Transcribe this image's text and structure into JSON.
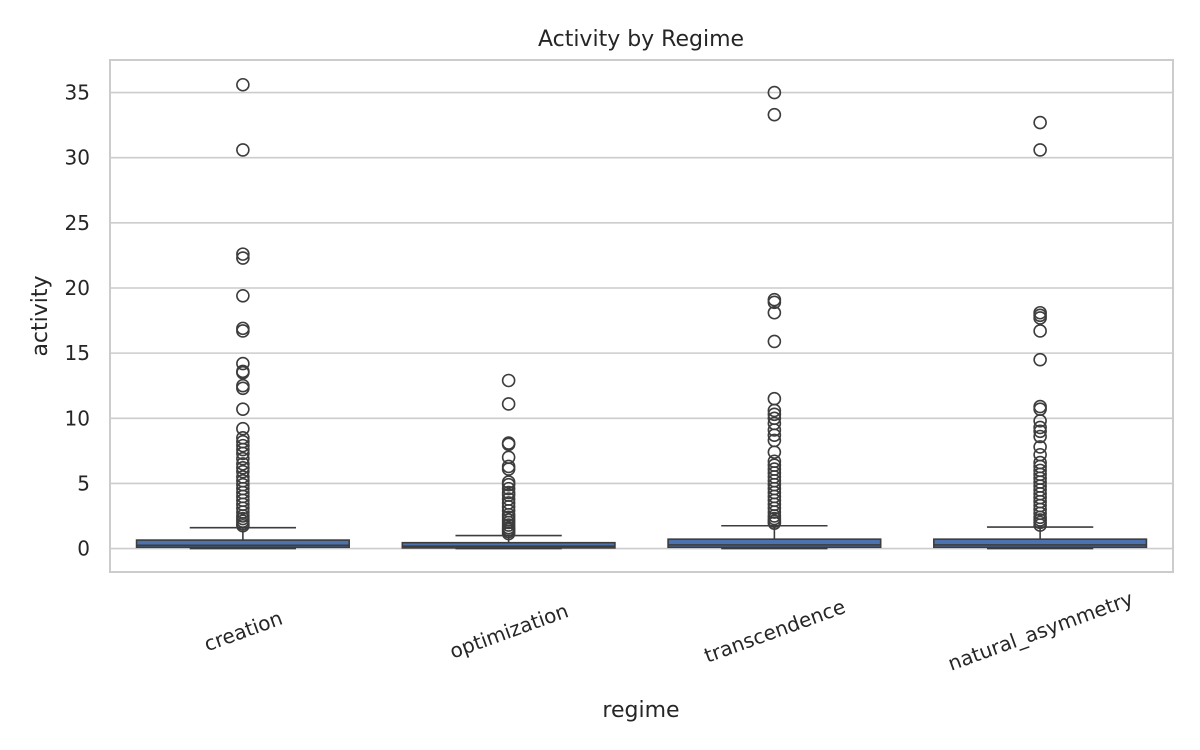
{
  "chart_data": {
    "type": "box",
    "title": "Activity by Regime",
    "xlabel": "regime",
    "ylabel": "activity",
    "ylim": [
      -1.8,
      37.5
    ],
    "yticks": [
      0,
      5,
      10,
      15,
      20,
      25,
      30,
      35
    ],
    "grid": "horizontal",
    "box_color": "#4c72b0",
    "line_color": "#3d3d3d",
    "categories": [
      "creation",
      "optimization",
      "transcendence",
      "natural_asymmetry"
    ],
    "boxes": [
      {
        "category": "creation",
        "whisker_low": 0.0,
        "q1": 0.1,
        "median": 0.25,
        "q3": 0.65,
        "whisker_high": 1.6,
        "outliers": [
          35.6,
          30.6,
          22.6,
          22.3,
          19.4,
          16.9,
          16.7,
          14.2,
          13.6,
          13.5,
          12.5,
          12.3,
          10.7,
          9.2,
          8.5,
          8.2,
          7.9,
          7.6,
          7.3,
          6.9,
          6.5,
          6.2,
          5.9,
          5.5,
          5.2,
          4.9,
          4.6,
          4.3,
          4.0,
          3.7,
          3.4,
          3.1,
          2.8,
          2.5,
          2.3,
          2.1,
          1.9,
          1.75
        ]
      },
      {
        "category": "optimization",
        "whisker_low": 0.0,
        "q1": 0.05,
        "median": 0.18,
        "q3": 0.45,
        "whisker_high": 1.0,
        "outliers": [
          12.9,
          11.1,
          8.1,
          8.0,
          7.0,
          6.3,
          6.1,
          5.1,
          4.9,
          4.6,
          4.3,
          4.1,
          3.8,
          3.5,
          3.2,
          2.9,
          2.6,
          2.4,
          2.2,
          2.0,
          1.8,
          1.6,
          1.45,
          1.3,
          1.15
        ]
      },
      {
        "category": "transcendence",
        "whisker_low": 0.0,
        "q1": 0.1,
        "median": 0.28,
        "q3": 0.72,
        "whisker_high": 1.75,
        "outliers": [
          35.0,
          33.3,
          19.1,
          18.9,
          18.1,
          15.9,
          11.5,
          10.6,
          10.3,
          10.0,
          9.6,
          9.1,
          8.7,
          8.3,
          7.4,
          6.7,
          6.4,
          6.1,
          5.8,
          5.5,
          5.2,
          4.9,
          4.6,
          4.3,
          4.0,
          3.7,
          3.4,
          3.1,
          2.8,
          2.5,
          2.3,
          2.1,
          1.95
        ]
      },
      {
        "category": "natural_asymmetry",
        "whisker_low": 0.0,
        "q1": 0.1,
        "median": 0.28,
        "q3": 0.72,
        "whisker_high": 1.65,
        "outliers": [
          32.7,
          30.6,
          18.1,
          17.9,
          17.7,
          16.7,
          14.5,
          10.9,
          10.7,
          9.8,
          9.3,
          9.0,
          8.6,
          7.8,
          7.2,
          6.6,
          6.3,
          6.0,
          5.7,
          5.4,
          5.1,
          4.8,
          4.5,
          4.2,
          3.9,
          3.6,
          3.3,
          3.0,
          2.7,
          2.4,
          2.2,
          2.0,
          1.8
        ]
      }
    ]
  }
}
